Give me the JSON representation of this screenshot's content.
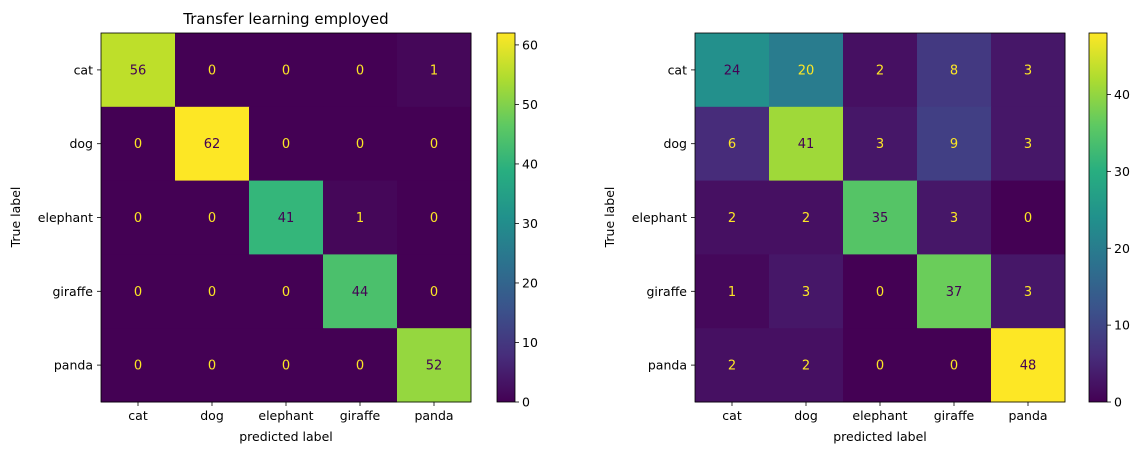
{
  "chart_data": [
    {
      "type": "heatmap",
      "title": "Transfer learning employed",
      "xlabel": "predicted label",
      "ylabel": "True label",
      "categories": [
        "cat",
        "dog",
        "elephant",
        "giraffe",
        "panda"
      ],
      "matrix": [
        [
          56,
          0,
          0,
          0,
          1
        ],
        [
          0,
          62,
          0,
          0,
          0
        ],
        [
          0,
          0,
          41,
          1,
          0
        ],
        [
          0,
          0,
          0,
          44,
          0
        ],
        [
          0,
          0,
          0,
          0,
          52
        ]
      ],
      "colormap": "viridis",
      "colorbar": {
        "min": 0,
        "max": 62,
        "ticks": [
          0,
          10,
          20,
          30,
          40,
          50,
          60
        ]
      }
    },
    {
      "type": "heatmap",
      "title": "",
      "xlabel": "predicted label",
      "ylabel": "True label",
      "categories": [
        "cat",
        "dog",
        "elephant",
        "giraffe",
        "panda"
      ],
      "matrix": [
        [
          24,
          20,
          2,
          8,
          3
        ],
        [
          6,
          41,
          3,
          9,
          3
        ],
        [
          2,
          2,
          35,
          3,
          0
        ],
        [
          1,
          3,
          0,
          37,
          3
        ],
        [
          2,
          2,
          0,
          0,
          48
        ]
      ],
      "colormap": "viridis",
      "colorbar": {
        "min": 0,
        "max": 48,
        "ticks": [
          0,
          10,
          20,
          30,
          40
        ]
      }
    }
  ],
  "colors": {
    "text_on_dark": "#fde725",
    "text_on_light": "#440154",
    "axis": "#000000"
  }
}
